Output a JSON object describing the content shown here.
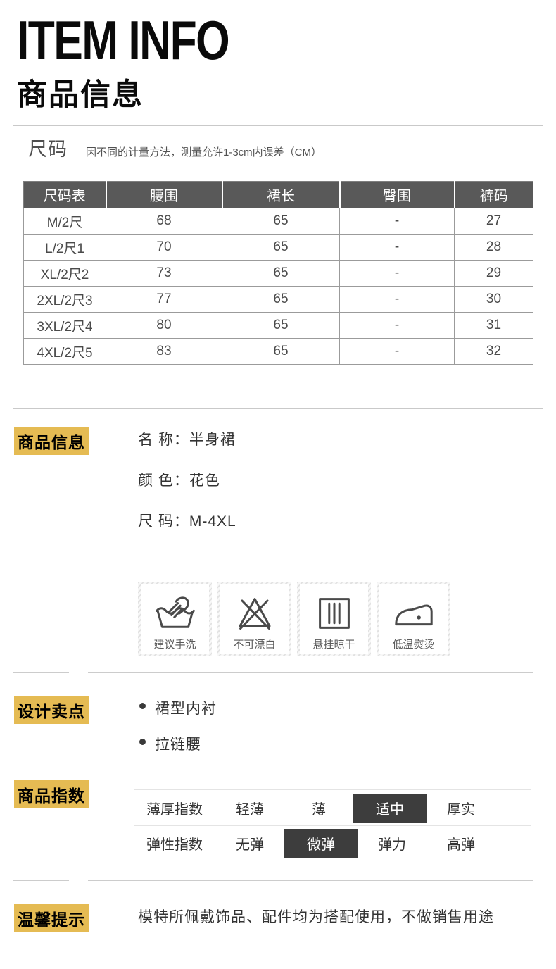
{
  "header": {
    "title_en": "ITEM INFO",
    "title_cn": "商品信息"
  },
  "size_section": {
    "label": "尺码",
    "note": "因不同的计量方法，测量允许1-3cm内误差（CM）",
    "table": {
      "headers": [
        "尺码表",
        "腰围",
        "裙长",
        "臀围",
        "裤码"
      ],
      "rows": [
        [
          "M/2尺",
          "68",
          "65",
          "-",
          "27"
        ],
        [
          "L/2尺1",
          "70",
          "65",
          "-",
          "28"
        ],
        [
          "XL/2尺2",
          "73",
          "65",
          "-",
          "29"
        ],
        [
          "2XL/2尺3",
          "77",
          "65",
          "-",
          "30"
        ],
        [
          "3XL/2尺4",
          "80",
          "65",
          "-",
          "31"
        ],
        [
          "4XL/2尺5",
          "83",
          "65",
          "-",
          "32"
        ]
      ]
    }
  },
  "product_info": {
    "label": "商品信息",
    "fields": [
      {
        "name": "名 称：",
        "value": "半身裙"
      },
      {
        "name": "颜 色：",
        "value": "花色"
      },
      {
        "name": "尺 码：",
        "value": "M-4XL"
      }
    ],
    "care_icons": [
      {
        "icon": "hand-wash-icon",
        "label": "建议手洗"
      },
      {
        "icon": "no-bleach-icon",
        "label": "不可漂白"
      },
      {
        "icon": "hang-dry-icon",
        "label": "悬挂晾干"
      },
      {
        "icon": "low-iron-icon",
        "label": "低温熨烫"
      }
    ]
  },
  "selling_points": {
    "label": "设计卖点",
    "items": [
      "裙型内衬",
      "拉链腰"
    ]
  },
  "product_index": {
    "label": "商品指数",
    "rows": [
      {
        "name": "薄厚指数",
        "options": [
          "轻薄",
          "薄",
          "适中",
          "厚实"
        ],
        "selected": 2
      },
      {
        "name": "弹性指数",
        "options": [
          "无弹",
          "微弹",
          "弹力",
          "高弹"
        ],
        "selected": 1
      }
    ]
  },
  "tips": {
    "label": "温馨提示",
    "text": "模特所佩戴饰品、配件均为搭配使用，不做销售用途"
  },
  "colors": {
    "highlight": "#e5bb53",
    "table_header_bg": "#595959",
    "selected_option_bg": "#3d3d3d",
    "icon_stroke": "#4a4a4a",
    "divider": "#c9c9c9"
  }
}
